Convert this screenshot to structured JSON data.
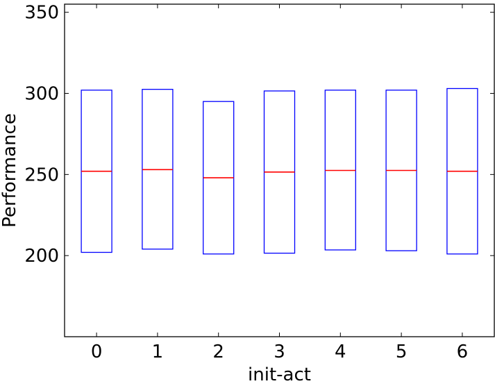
{
  "chart_data": {
    "type": "box",
    "xlabel": "init-act",
    "ylabel": "Performance",
    "categories": [
      "0",
      "1",
      "2",
      "3",
      "4",
      "5",
      "6"
    ],
    "boxes": [
      {
        "q1": 202,
        "median": 252,
        "q3": 302
      },
      {
        "q1": 204,
        "median": 253,
        "q3": 302.5
      },
      {
        "q1": 201,
        "median": 248,
        "q3": 295
      },
      {
        "q1": 201.5,
        "median": 251.5,
        "q3": 301.5
      },
      {
        "q1": 203.5,
        "median": 252.5,
        "q3": 302
      },
      {
        "q1": 203,
        "median": 252.5,
        "q3": 302
      },
      {
        "q1": 201,
        "median": 252,
        "q3": 303
      }
    ],
    "ylim": [
      150,
      355
    ],
    "yticks": [
      200,
      250,
      300,
      350
    ],
    "box_color": "#0000ff",
    "median_color": "#ff0000",
    "grid": false
  }
}
